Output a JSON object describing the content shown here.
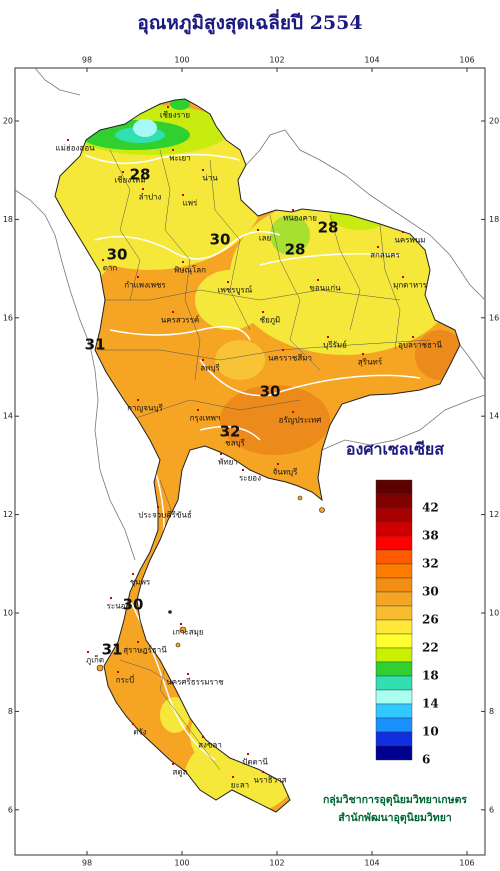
{
  "title": "อุณหภูมิสูงสุดเฉลี่ยปี 2554",
  "map": {
    "lon_ticks": [
      98,
      100,
      102,
      104,
      106
    ],
    "lat_ticks": [
      20,
      18,
      16,
      14,
      12,
      10,
      8,
      6
    ],
    "provinces": [
      "เชียงราย",
      "แม่ฮ่องสอน",
      "พะเยา",
      "น่าน",
      "ลำปาง",
      "แพร่",
      "เชียงใหม่",
      "หนองคาย",
      "เลย",
      "สกลนคร",
      "นครพนม",
      "มุกดาหาร",
      "ขอนแก่น",
      "ตาก",
      "พิษณุโลก",
      "กำแพงเพชร",
      "เพชรบูรณ์",
      "ชัยภูมิ",
      "นครสวรรค์",
      "ลพบุรี",
      "นครราชสีมา",
      "บุรีรัมย์",
      "สุรินทร์",
      "อุบลราชธานี",
      "กาญจนบุรี",
      "กรุงเทพฯ",
      "อรัญประเทศ",
      "ชลบุรี",
      "พัทยา",
      "ระยอง",
      "จันทบุรี",
      "ประจวบคีรีขันธ์",
      "ชุมพร",
      "ระนอง",
      "เกาะสมุย",
      "สุราษฎร์ธานี",
      "ภูเก็ต",
      "กระบี่",
      "นครศรีธรรมราช",
      "ตรัง",
      "สงขลา",
      "สตูล",
      "ปัตตานี",
      "ยะลา",
      "นราธิวาส"
    ],
    "contour_labels": [
      28,
      30,
      30,
      28,
      28,
      31,
      30,
      32,
      30,
      31
    ]
  },
  "legend": {
    "title": "องศาเซลเซียส",
    "colors": [
      "#5c0000",
      "#800000",
      "#a80000",
      "#d00000",
      "#ff0000",
      "#ff5a00",
      "#ff7c00",
      "#f28e14",
      "#f5a424",
      "#f8bc30",
      "#ffe838",
      "#ffff30",
      "#c8f000",
      "#30d030",
      "#30e0b0",
      "#a8fff0",
      "#30c8ff",
      "#1a90ff",
      "#1030e0",
      "#000090"
    ],
    "labels": [
      42,
      38,
      32,
      30,
      26,
      22,
      18,
      14,
      10,
      6
    ]
  },
  "credits": [
    "กลุ่มวิชาการอุตุนิยมวิทยาเกษตร",
    "สำนักพัฒนาอุตุนิยมวิทยา"
  ]
}
